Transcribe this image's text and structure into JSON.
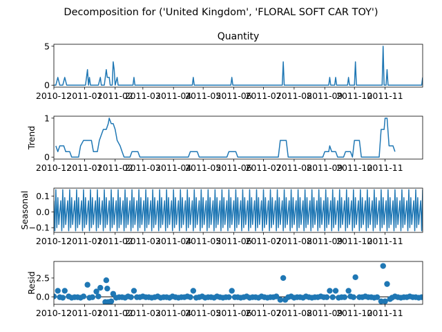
{
  "suptitle": "Decomposition for ('United Kingdom', 'FLORAL SOFT CAR TOY')",
  "line_color": "#1f77b4",
  "chart_data": {
    "type": "line",
    "x_axis": {
      "ticks": [
        "2010-12",
        "2011-01",
        "2011-02",
        "2011-03",
        "2011-04",
        "2011-05",
        "2011-06",
        "2011-07",
        "2011-08",
        "2011-09",
        "2011-10",
        "2011-11"
      ],
      "xlim": [
        "2010-12-01",
        "2011-12-09"
      ]
    },
    "panels": [
      {
        "name": "observed",
        "type": "line",
        "title": "Quantity",
        "ylabel": "",
        "ylim": [
          -0.25,
          5.25
        ],
        "yticks": [
          0,
          5
        ],
        "ytick_labels": [
          "0",
          "5"
        ],
        "series": [
          {
            "points": [
              [
                "2010-12-01",
                0
              ],
              [
                "2010-12-03",
                0
              ],
              [
                "2010-12-05",
                1
              ],
              [
                "2010-12-07",
                0
              ],
              [
                "2010-12-10",
                0
              ],
              [
                "2010-12-12",
                1
              ],
              [
                "2010-12-14",
                0
              ],
              [
                "2010-12-19",
                0
              ],
              [
                "2010-12-21",
                0
              ],
              [
                "2010-12-24",
                0
              ],
              [
                "2011-01-02",
                0
              ],
              [
                "2011-01-04",
                2
              ],
              [
                "2011-01-05",
                0
              ],
              [
                "2011-01-06",
                1
              ],
              [
                "2011-01-07",
                0
              ],
              [
                "2011-01-15",
                0
              ],
              [
                "2011-01-17",
                1
              ],
              [
                "2011-01-18",
                0
              ],
              [
                "2011-01-21",
                0
              ],
              [
                "2011-01-23",
                2
              ],
              [
                "2011-01-24",
                1
              ],
              [
                "2011-01-26",
                1
              ],
              [
                "2011-01-27",
                0
              ],
              [
                "2011-01-29",
                0
              ],
              [
                "2011-01-30",
                3
              ],
              [
                "2011-01-31",
                2
              ],
              [
                "2011-02-01",
                0
              ],
              [
                "2011-02-03",
                1
              ],
              [
                "2011-02-04",
                0
              ],
              [
                "2011-02-05",
                0
              ],
              [
                "2011-02-19",
                0
              ],
              [
                "2011-02-20",
                1
              ],
              [
                "2011-02-21",
                0
              ],
              [
                "2011-04-20",
                0
              ],
              [
                "2011-04-21",
                1
              ],
              [
                "2011-04-22",
                0
              ],
              [
                "2011-05-29",
                0
              ],
              [
                "2011-05-30",
                1
              ],
              [
                "2011-05-31",
                0
              ],
              [
                "2011-07-20",
                0
              ],
              [
                "2011-07-21",
                3
              ],
              [
                "2011-07-22",
                0
              ],
              [
                "2011-09-05",
                0
              ],
              [
                "2011-09-06",
                1
              ],
              [
                "2011-09-07",
                0
              ],
              [
                "2011-09-11",
                0
              ],
              [
                "2011-09-12",
                1
              ],
              [
                "2011-09-13",
                0
              ],
              [
                "2011-09-24",
                0
              ],
              [
                "2011-09-25",
                1
              ],
              [
                "2011-09-26",
                0
              ],
              [
                "2011-10-01",
                0
              ],
              [
                "2011-10-02",
                3
              ],
              [
                "2011-10-03",
                0
              ],
              [
                "2011-10-29",
                0
              ],
              [
                "2011-10-30",
                5
              ],
              [
                "2011-10-31",
                0
              ],
              [
                "2011-11-02",
                0
              ],
              [
                "2011-11-03",
                2
              ],
              [
                "2011-11-04",
                0
              ],
              [
                "2011-12-08",
                0
              ],
              [
                "2011-12-09",
                1
              ]
            ]
          }
        ]
      },
      {
        "name": "trend",
        "type": "line",
        "title": "",
        "ylabel": "Trend",
        "ylim": [
          -0.05,
          1.05
        ],
        "yticks": [
          0,
          1
        ],
        "ytick_labels": [
          "0",
          "1"
        ],
        "series": [
          {
            "points": [
              [
                "2010-12-03",
                0.29
              ],
              [
                "2010-12-05",
                0.14
              ],
              [
                "2010-12-07",
                0.29
              ],
              [
                "2010-12-11",
                0.29
              ],
              [
                "2010-12-13",
                0.14
              ],
              [
                "2010-12-17",
                0.14
              ],
              [
                "2010-12-19",
                0.0
              ],
              [
                "2010-12-26",
                0.0
              ],
              [
                "2010-12-28",
                0.29
              ],
              [
                "2010-12-31",
                0.43
              ],
              [
                "2011-01-08",
                0.43
              ],
              [
                "2011-01-10",
                0.14
              ],
              [
                "2011-01-14",
                0.14
              ],
              [
                "2011-01-16",
                0.43
              ],
              [
                "2011-01-18",
                0.57
              ],
              [
                "2011-01-20",
                0.71
              ],
              [
                "2011-01-23",
                0.71
              ],
              [
                "2011-01-25",
                0.86
              ],
              [
                "2011-01-26",
                1.0
              ],
              [
                "2011-01-28",
                0.86
              ],
              [
                "2011-01-30",
                0.86
              ],
              [
                "2011-02-01",
                0.71
              ],
              [
                "2011-02-03",
                0.43
              ],
              [
                "2011-02-06",
                0.29
              ],
              [
                "2011-02-08",
                0.14
              ],
              [
                "2011-02-10",
                0.0
              ],
              [
                "2011-02-16",
                0.0
              ],
              [
                "2011-02-18",
                0.14
              ],
              [
                "2011-02-24",
                0.14
              ],
              [
                "2011-02-26",
                0.0
              ],
              [
                "2011-04-16",
                0.0
              ],
              [
                "2011-04-18",
                0.14
              ],
              [
                "2011-04-25",
                0.14
              ],
              [
                "2011-04-27",
                0.0
              ],
              [
                "2011-05-25",
                0.0
              ],
              [
                "2011-05-27",
                0.14
              ],
              [
                "2011-06-03",
                0.14
              ],
              [
                "2011-06-05",
                0.0
              ],
              [
                "2011-07-16",
                0.0
              ],
              [
                "2011-07-18",
                0.43
              ],
              [
                "2011-07-24",
                0.43
              ],
              [
                "2011-07-26",
                0.0
              ],
              [
                "2011-08-30",
                0.0
              ],
              [
                "2011-09-01",
                0.14
              ],
              [
                "2011-09-05",
                0.14
              ],
              [
                "2011-09-06",
                0.29
              ],
              [
                "2011-09-08",
                0.14
              ],
              [
                "2011-09-12",
                0.14
              ],
              [
                "2011-09-14",
                0.0
              ],
              [
                "2011-09-20",
                0.0
              ],
              [
                "2011-09-22",
                0.14
              ],
              [
                "2011-09-27",
                0.14
              ],
              [
                "2011-09-29",
                0.0
              ],
              [
                "2011-10-01",
                0.43
              ],
              [
                "2011-10-06",
                0.43
              ],
              [
                "2011-10-08",
                0.0
              ],
              [
                "2011-10-26",
                0.0
              ],
              [
                "2011-10-28",
                0.71
              ],
              [
                "2011-10-31",
                0.71
              ],
              [
                "2011-11-01",
                1.0
              ],
              [
                "2011-11-03",
                1.0
              ],
              [
                "2011-11-05",
                0.29
              ],
              [
                "2011-11-09",
                0.29
              ],
              [
                "2011-11-11",
                0.14
              ]
            ]
          }
        ]
      },
      {
        "name": "seasonal",
        "type": "line",
        "title": "",
        "ylabel": "Seasonal",
        "ylim": [
          -0.13,
          0.15
        ],
        "yticks": [
          -0.1,
          0.0,
          0.1
        ],
        "ytick_labels": [
          "−0.1",
          "0.0",
          "0.1"
        ],
        "seasonal_pattern": [
          0.07,
          -0.12,
          0.14,
          -0.1,
          0.09,
          -0.08,
          0.0
        ],
        "series": [
          {
            "start": "2010-12-01",
            "end": "2011-12-09",
            "step_days": 1
          }
        ]
      },
      {
        "name": "resid",
        "type": "scatter",
        "title": "",
        "ylabel": "Resid",
        "ylim": [
          -1.0,
          4.7
        ],
        "yticks": [
          0.0,
          2.5
        ],
        "ytick_labels": [
          "0.0",
          "2.5"
        ],
        "zero_line": true,
        "highlights": [
          [
            "2010-12-05",
            0.8
          ],
          [
            "2010-12-12",
            0.8
          ],
          [
            "2011-01-04",
            1.6
          ],
          [
            "2011-01-13",
            0.7
          ],
          [
            "2011-01-17",
            1.2
          ],
          [
            "2011-01-23",
            2.2
          ],
          [
            "2011-01-24",
            1.1
          ],
          [
            "2011-01-30",
            0.4
          ],
          [
            "2011-01-22",
            -0.7
          ],
          [
            "2011-01-25",
            -0.7
          ],
          [
            "2011-01-28",
            -0.6
          ],
          [
            "2011-02-20",
            0.8
          ],
          [
            "2011-04-21",
            0.8
          ],
          [
            "2011-05-30",
            0.8
          ],
          [
            "2011-07-21",
            2.5
          ],
          [
            "2011-07-18",
            -0.4
          ],
          [
            "2011-07-23",
            -0.4
          ],
          [
            "2011-09-06",
            0.8
          ],
          [
            "2011-09-12",
            0.8
          ],
          [
            "2011-09-25",
            0.8
          ],
          [
            "2011-10-02",
            2.6
          ],
          [
            "2011-10-30",
            4.1
          ],
          [
            "2011-10-28",
            -0.6
          ],
          [
            "2011-11-01",
            -0.6
          ],
          [
            "2011-11-03",
            1.7
          ],
          [
            "2011-11-06",
            -0.3
          ]
        ]
      }
    ]
  }
}
